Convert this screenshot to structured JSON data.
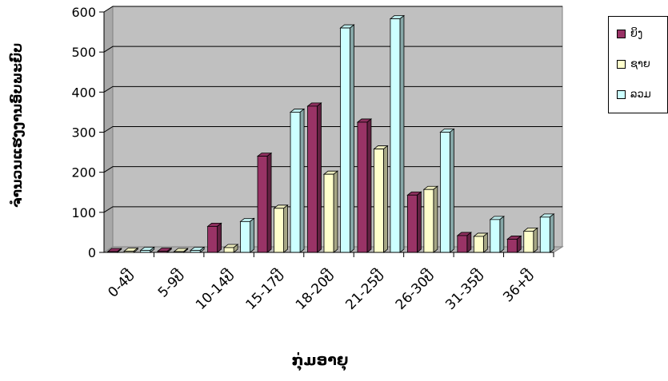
{
  "chart_data": {
    "type": "bar",
    "title": "",
    "xlabel": "ກຸ່ມອາຍຸ",
    "ylabel": "ຈຳນວນແຮງງານອົບພະຍົບ",
    "categories": [
      "0-4ປີ",
      "5-9ປີ",
      "10-14ປີ",
      "15-17ປີ",
      "18-20ປີ",
      "21-25ປີ",
      "26-30ປີ",
      "31-35ປີ",
      "36+ປີ"
    ],
    "series": [
      {
        "name": "ຍິງ",
        "color": "#993366",
        "values": [
          2,
          3,
          65,
          240,
          365,
          325,
          143,
          42,
          33
        ]
      },
      {
        "name": "ຊາຍ",
        "color": "#FFFFCC",
        "values": [
          3,
          2,
          12,
          110,
          195,
          258,
          157,
          40,
          53
        ]
      },
      {
        "name": "ລວມ",
        "color": "#CCFFFF",
        "values": [
          5,
          5,
          77,
          350,
          560,
          583,
          300,
          82,
          88
        ]
      }
    ],
    "ylim": [
      0,
      600
    ],
    "yticks": [
      0,
      100,
      200,
      300,
      400,
      500,
      600
    ],
    "grid": true,
    "legend": "right"
  }
}
